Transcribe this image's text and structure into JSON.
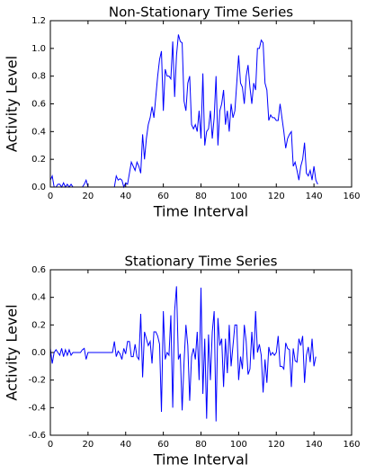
{
  "chart_data": [
    {
      "type": "line",
      "title": "Non-Stationary Time Series",
      "x_label": "Time Interval",
      "y_label": "Activity Level",
      "xlim": [
        0,
        160
      ],
      "xticks": [
        0,
        20,
        40,
        60,
        80,
        100,
        120,
        140,
        160
      ],
      "ylim": [
        0,
        1.2
      ],
      "yticks": [
        {
          "value": 0,
          "label": "0.0"
        },
        0.2,
        0.4,
        0.6,
        0.8,
        {
          "value": 1,
          "label": "1.0"
        },
        1.2
      ],
      "series": [
        {
          "color": "#0000ff",
          "x": [
            0,
            1,
            2,
            3,
            4,
            5,
            6,
            7,
            8,
            9,
            10,
            11,
            12,
            13,
            14,
            15,
            16,
            17,
            18,
            19,
            20,
            21,
            22,
            23,
            24,
            25,
            26,
            27,
            28,
            29,
            30,
            31,
            32,
            33,
            34,
            35,
            36,
            37,
            38,
            39,
            40,
            41,
            42,
            43,
            44,
            45,
            46,
            47,
            48,
            49,
            50,
            51,
            52,
            53,
            54,
            55,
            56,
            57,
            58,
            59,
            60,
            61,
            62,
            63,
            64,
            65,
            66,
            67,
            68,
            69,
            70,
            71,
            72,
            73,
            74,
            75,
            76,
            77,
            78,
            79,
            80,
            81,
            82,
            83,
            84,
            85,
            86,
            87,
            88,
            89,
            90,
            91,
            92,
            93,
            94,
            95,
            96,
            97,
            98,
            99,
            100,
            101,
            102,
            103,
            104,
            105,
            106,
            107,
            108,
            109,
            110,
            111,
            112,
            113,
            114,
            115,
            116,
            117,
            118,
            119,
            120,
            121,
            122,
            123,
            124,
            125,
            126,
            127,
            128,
            129,
            130,
            131,
            132,
            133,
            134,
            135,
            136,
            137,
            138,
            139,
            140,
            141,
            142
          ],
          "values": [
            0.05,
            0.08,
            0,
            0,
            0.02,
            0.02,
            0,
            0.03,
            0,
            0.02,
            0,
            0.02,
            0,
            0,
            0,
            0,
            0,
            0,
            0.02,
            0.05,
            0,
            0,
            0,
            0,
            0,
            0,
            0,
            0,
            0,
            0,
            0,
            0,
            0,
            0,
            0,
            0.08,
            0.05,
            0.06,
            0.05,
            0,
            0.03,
            0.02,
            0.1,
            0.18,
            0.15,
            0.12,
            0.18,
            0.15,
            0.1,
            0.38,
            0.2,
            0.35,
            0.45,
            0.5,
            0.58,
            0.5,
            0.65,
            0.8,
            0.92,
            0.98,
            0.55,
            0.85,
            0.8,
            0.8,
            0.78,
            1.05,
            0.65,
            0.95,
            1.1,
            1.05,
            1.04,
            0.62,
            0.55,
            0.75,
            0.8,
            0.45,
            0.42,
            0.45,
            0.4,
            0.55,
            0.35,
            0.82,
            0.3,
            0.4,
            0.42,
            0.55,
            0.35,
            0.5,
            0.8,
            0.3,
            0.55,
            0.6,
            0.7,
            0.45,
            0.55,
            0.4,
            0.6,
            0.5,
            0.55,
            0.75,
            0.95,
            0.75,
            0.72,
            0.6,
            0.8,
            0.88,
            0.72,
            0.6,
            0.75,
            0.7,
            1.0,
            1.0,
            1.06,
            1.04,
            0.75,
            0.7,
            0.48,
            0.52,
            0.5,
            0.5,
            0.48,
            0.48,
            0.6,
            0.5,
            0.4,
            0.28,
            0.35,
            0.38,
            0.4,
            0.15,
            0.18,
            0.12,
            0.05,
            0.15,
            0.2,
            0.32,
            0.1,
            0.08,
            0.12,
            0.05,
            0.15,
            0.05,
            0.02
          ]
        }
      ]
    },
    {
      "type": "line",
      "title": "Stationary Time Series",
      "x_label": "Time Interval",
      "y_label": "Activity Level",
      "xlim": [
        0,
        160
      ],
      "xticks": [
        0,
        20,
        40,
        60,
        80,
        100,
        120,
        140,
        160
      ],
      "ylim": [
        -0.6,
        0.6
      ],
      "yticks": [
        -0.6,
        -0.4,
        -0.2,
        {
          "value": 0,
          "label": "0.0"
        },
        0.2,
        0.4,
        0.6
      ],
      "series": [
        {
          "color": "#0000ff",
          "x": [
            0,
            1,
            2,
            3,
            4,
            5,
            6,
            7,
            8,
            9,
            10,
            11,
            12,
            13,
            14,
            15,
            16,
            17,
            18,
            19,
            20,
            21,
            22,
            23,
            24,
            25,
            26,
            27,
            28,
            29,
            30,
            31,
            32,
            33,
            34,
            35,
            36,
            37,
            38,
            39,
            40,
            41,
            42,
            43,
            44,
            45,
            46,
            47,
            48,
            49,
            50,
            51,
            52,
            53,
            54,
            55,
            56,
            57,
            58,
            59,
            60,
            61,
            62,
            63,
            64,
            65,
            66,
            67,
            68,
            69,
            70,
            71,
            72,
            73,
            74,
            75,
            76,
            77,
            78,
            79,
            80,
            81,
            82,
            83,
            84,
            85,
            86,
            87,
            88,
            89,
            90,
            91,
            92,
            93,
            94,
            95,
            96,
            97,
            98,
            99,
            100,
            101,
            102,
            103,
            104,
            105,
            106,
            107,
            108,
            109,
            110,
            111,
            112,
            113,
            114,
            115,
            116,
            117,
            118,
            119,
            120,
            121,
            122,
            123,
            124,
            125,
            126,
            127,
            128,
            129,
            130,
            131,
            132,
            133,
            134,
            135,
            136,
            137,
            138,
            139,
            140,
            141
          ],
          "values": [
            0.03,
            -0.08,
            0,
            0.02,
            0,
            -0.02,
            0.03,
            -0.03,
            0.02,
            -0.02,
            0.02,
            -0.02,
            0,
            0,
            0,
            0,
            0,
            0.02,
            0.03,
            -0.05,
            0,
            0,
            0,
            0,
            0,
            0,
            0,
            0,
            0,
            0,
            0,
            0,
            0,
            0,
            0.08,
            -0.03,
            0.01,
            -0.01,
            -0.05,
            0.03,
            -0.01,
            0.08,
            0.08,
            -0.03,
            -0.03,
            0.06,
            -0.03,
            -0.05,
            0.28,
            -0.18,
            0.15,
            0.1,
            0.05,
            0.08,
            -0.08,
            0.15,
            0.15,
            0.12,
            0.06,
            -0.43,
            0.3,
            -0.05,
            0,
            -0.02,
            0.27,
            -0.4,
            0.3,
            0.48,
            -0.05,
            -0.01,
            -0.42,
            -0.07,
            0.2,
            0.05,
            -0.35,
            -0.03,
            0.03,
            -0.05,
            0.15,
            -0.2,
            0.47,
            -0.3,
            0.1,
            -0.48,
            0.13,
            -0.2,
            0.15,
            0.3,
            -0.5,
            0.25,
            0.05,
            0.1,
            -0.25,
            0.1,
            -0.15,
            0.2,
            -0.1,
            0.05,
            0.2,
            0.2,
            -0.2,
            -0.03,
            -0.12,
            0.2,
            0.08,
            -0.16,
            -0.12,
            0.15,
            -0.05,
            0.3,
            0,
            0.06,
            -0.02,
            -0.29,
            -0.05,
            -0.22,
            0.04,
            -0.02,
            0,
            -0.02,
            0,
            0.12,
            -0.1,
            -0.1,
            -0.12,
            0.07,
            0.03,
            0.02,
            -0.25,
            0.03,
            -0.06,
            -0.07,
            0.1,
            0.05,
            0.12,
            -0.22,
            -0.02,
            0.04,
            -0.07,
            0.1,
            -0.1,
            -0.03
          ]
        }
      ]
    }
  ]
}
